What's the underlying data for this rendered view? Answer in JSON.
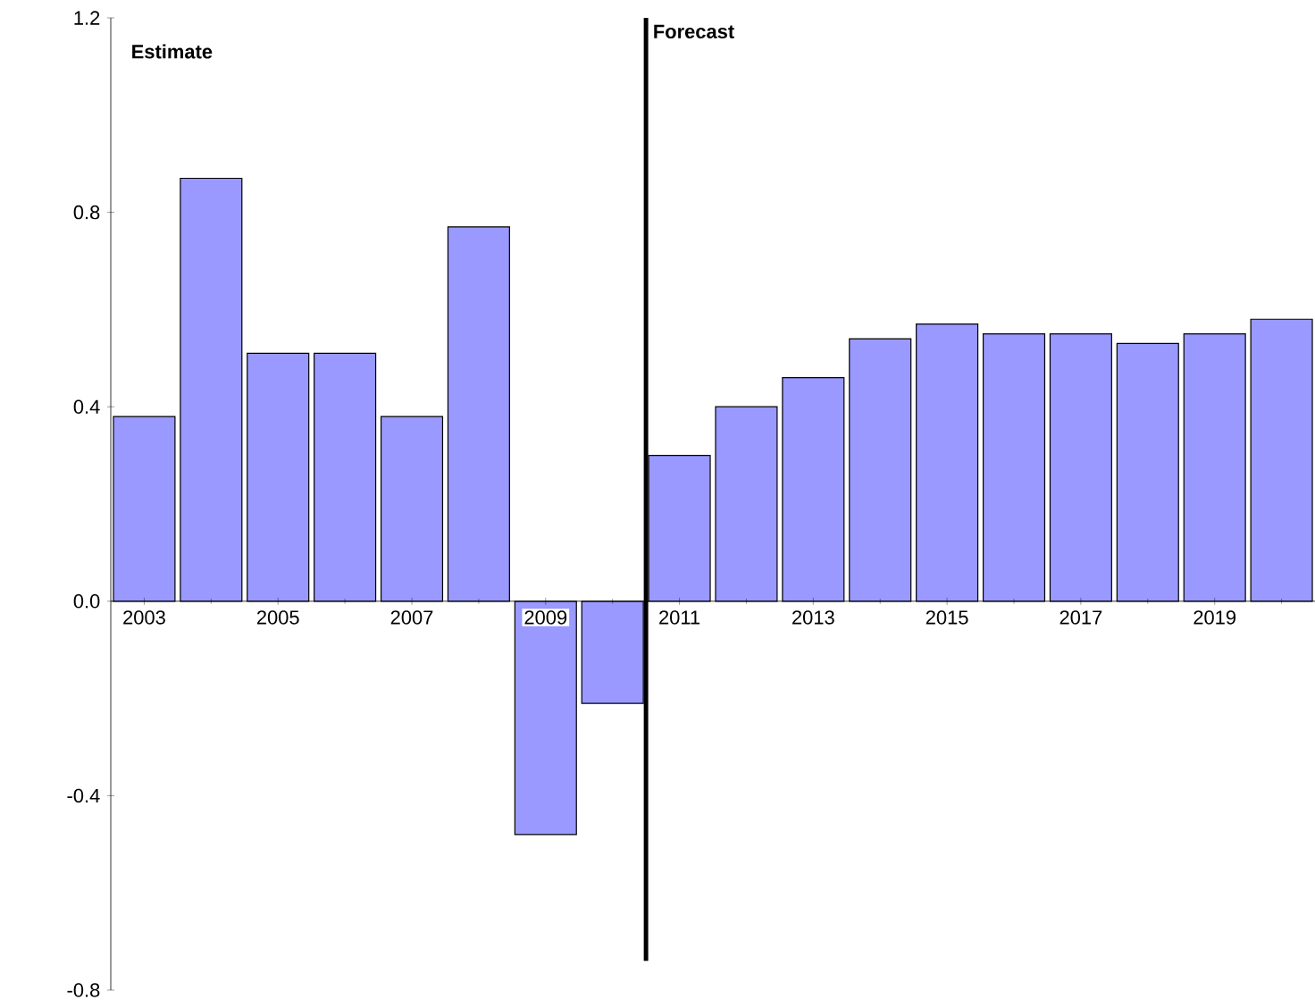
{
  "chart_data": {
    "type": "bar",
    "categories": [
      "2003",
      null,
      "2005",
      null,
      "2007",
      null,
      "2009",
      null,
      "2011",
      null,
      "2013",
      null,
      "2015",
      null,
      "2017",
      null,
      "2019",
      null
    ],
    "values": [
      0.38,
      0.87,
      0.51,
      0.51,
      0.38,
      0.77,
      -0.48,
      -0.21,
      0.3,
      0.4,
      0.46,
      0.54,
      0.57,
      0.55,
      0.55,
      0.53,
      0.55,
      0.58
    ],
    "color": "#9999ff",
    "ylim": [
      -0.8,
      1.2
    ],
    "yticks": [
      {
        "value": -0.8,
        "label": "-0.8"
      },
      {
        "value": -0.4,
        "label": "-0.4"
      },
      {
        "value": 0,
        "label": "0.0"
      },
      {
        "value": 0.4,
        "label": "0.4"
      },
      {
        "value": 0.8,
        "label": "0.8"
      },
      {
        "value": 1.2,
        "label": "1.2"
      }
    ],
    "annotations": [
      "Estimate",
      "Forecast"
    ],
    "grid": false
  }
}
